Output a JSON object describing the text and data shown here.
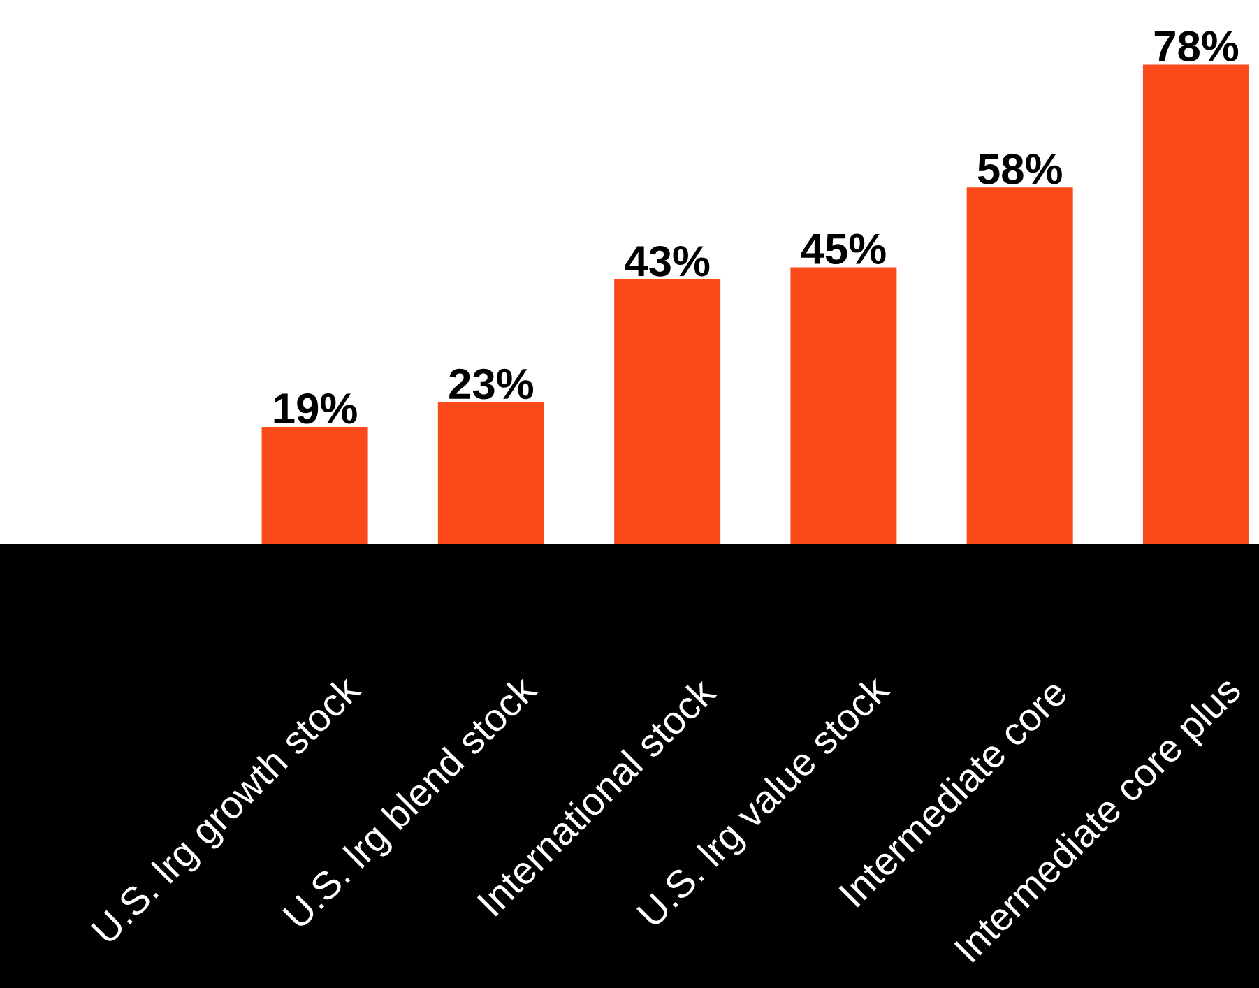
{
  "chart_data": {
    "type": "bar",
    "categories": [
      "U.S. lrg growth stock",
      "U.S. lrg blend stock",
      "International stock",
      "U.S. lrg value stock",
      "Intermediate core",
      "Intermediate core plus"
    ],
    "values": [
      19,
      23,
      43,
      45,
      58,
      78
    ],
    "value_labels": [
      "19%",
      "23%",
      "43%",
      "45%",
      "58%",
      "78%"
    ],
    "color": "#fc4a1a"
  }
}
